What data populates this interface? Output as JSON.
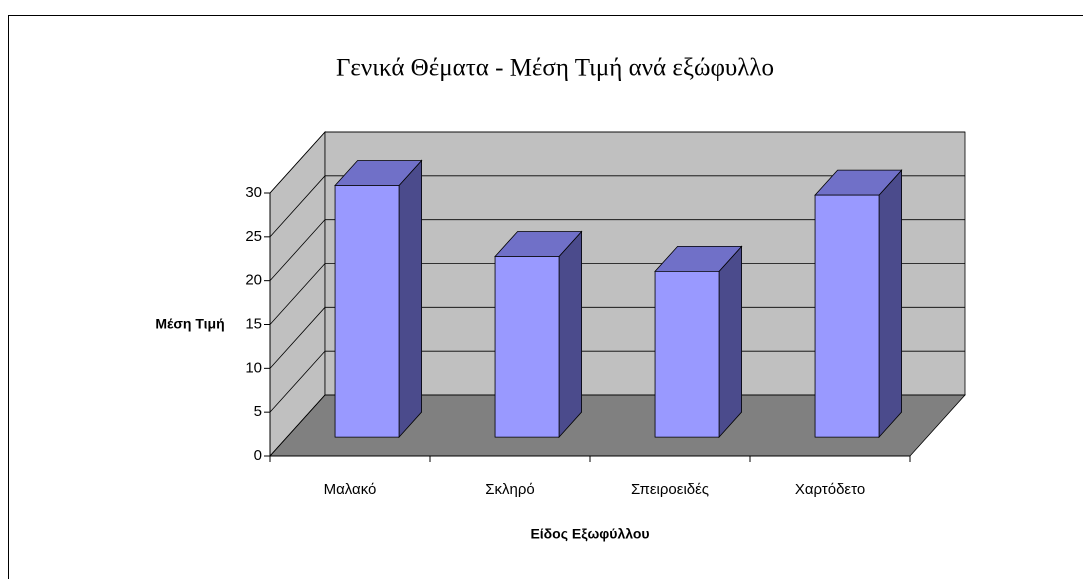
{
  "chart_data": {
    "type": "bar3d",
    "title": "Γενικά Θέματα - Μέση Τιμή ανά εξώφυλλο",
    "x_label": "Είδος Εξωφύλλου",
    "y_label": "Μέση Τιμή",
    "categories": [
      "Μαλακό",
      "Σκληρό",
      "Σπειροειδές",
      "Χαρτόδετο"
    ],
    "values": [
      28.7,
      20.6,
      18.9,
      27.6
    ],
    "color": "#9999ff",
    "ylim": [
      0,
      30
    ],
    "yticks": [
      0,
      5,
      10,
      15,
      20,
      25,
      30
    ],
    "grid": true
  }
}
